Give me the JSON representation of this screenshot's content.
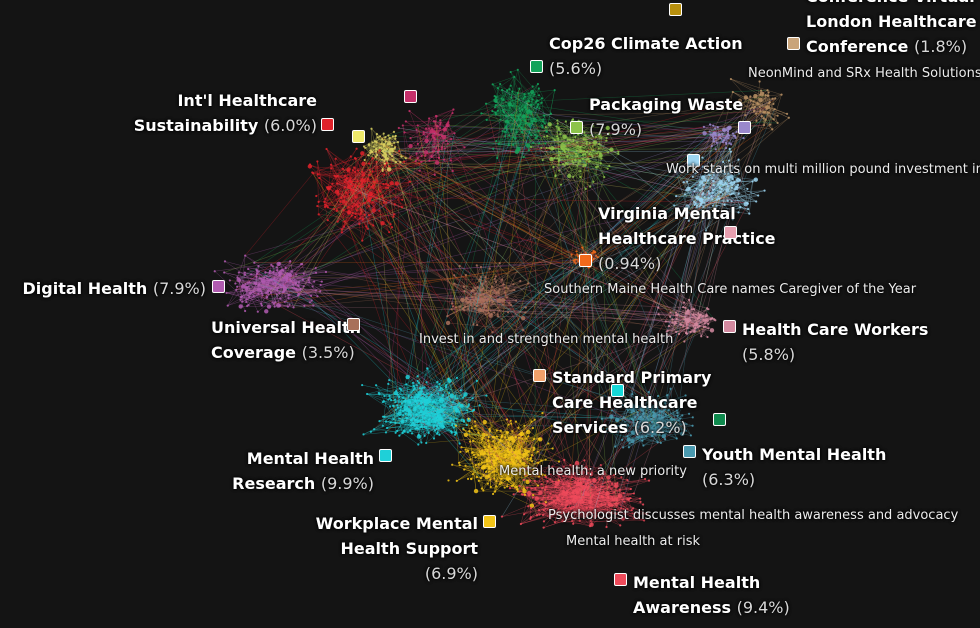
{
  "clusters": [
    {
      "id": "london",
      "name_lines": [
        "Conference Virtual",
        "London Healthcare",
        "Conference"
      ],
      "pct": "(1.8%)",
      "color": "#c9a47a"
    },
    {
      "id": "cop26",
      "name_lines": [
        "Cop26 Climate Action"
      ],
      "pct": "(5.6%)",
      "color": "#13a35a"
    },
    {
      "id": "packaging",
      "name_lines": [
        "Packaging Waste"
      ],
      "pct": "(7.9%)",
      "color": "#8cc34a"
    },
    {
      "id": "intl",
      "name_lines": [
        "Int'l Healthcare",
        "Sustainability"
      ],
      "pct": "(6.0%)",
      "color": "#e0222a"
    },
    {
      "id": "virginia",
      "name_lines": [
        "Virginia Mental",
        "Healthcare Practice"
      ],
      "pct": "(0.94%)",
      "color": "#f26a1b"
    },
    {
      "id": "digital",
      "name_lines": [
        "Digital Health"
      ],
      "pct": "(7.9%)",
      "color": "#b05bb0"
    },
    {
      "id": "universal",
      "name_lines": [
        "Universal Health",
        "Coverage"
      ],
      "pct": "(3.5%)",
      "color": "#a8705a"
    },
    {
      "id": "workers",
      "name_lines": [
        "Health Care Workers"
      ],
      "pct": "(5.8%)",
      "color": "#d48aa0"
    },
    {
      "id": "standard",
      "name_lines": [
        "Standard Primary",
        "Care Healthcare",
        "Services"
      ],
      "pct": "(6.2%)",
      "color": "#f2a06a"
    },
    {
      "id": "youth",
      "name_lines": [
        "Youth Mental Health"
      ],
      "pct": "(6.3%)",
      "color": "#4a9ab0"
    },
    {
      "id": "research",
      "name_lines": [
        "Mental Health",
        "Research"
      ],
      "pct": "(9.9%)",
      "color": "#1fd0d8"
    },
    {
      "id": "workplace",
      "name_lines": [
        "Workplace Mental",
        "Health Support"
      ],
      "pct": "(6.9%)",
      "color": "#f2c417"
    },
    {
      "id": "awareness",
      "name_lines": [
        "Mental Health",
        "Awareness"
      ],
      "pct": "(9.4%)",
      "color": "#ee4a5a"
    }
  ],
  "extra_swatches": [
    {
      "id": "gold-top",
      "color": "#b8900e"
    },
    {
      "id": "magenta",
      "color": "#c5306a"
    },
    {
      "id": "yellow",
      "color": "#eee86a"
    },
    {
      "id": "lavender",
      "color": "#9a88cc"
    },
    {
      "id": "lightblue",
      "color": "#9ed6f2"
    },
    {
      "id": "pink-small",
      "color": "#e8a0b0"
    },
    {
      "id": "cyan-mid",
      "color": "#15d8d8"
    },
    {
      "id": "green-dark",
      "color": "#0f8a4e"
    }
  ],
  "annotations": [
    {
      "id": "neonmind",
      "text": "NeonMind and SRx Health Solutions"
    },
    {
      "id": "investment",
      "text": "Work starts on multi million pound investment in"
    },
    {
      "id": "southern",
      "text": "Southern Maine Health Care names Caregiver of the Year"
    },
    {
      "id": "invest",
      "text": "Invest in and strengthen mental health"
    },
    {
      "id": "priority",
      "text": "Mental health: a new priority"
    },
    {
      "id": "psychologist",
      "text": "Psychologist discusses mental health awareness and advocacy"
    },
    {
      "id": "atrisk",
      "text": "Mental health at risk"
    }
  ],
  "network": {
    "background": "#141414",
    "blobs": [
      {
        "color": "#b89064",
        "n": 60,
        "spread": 1.0
      },
      {
        "color": "#13a35a",
        "n": 140,
        "spread": 1.0
      },
      {
        "color": "#8cc34a",
        "n": 140,
        "spread": 1.0
      },
      {
        "color": "#e0222a",
        "n": 190,
        "spread": 1.0
      },
      {
        "color": "#c5306a",
        "n": 80,
        "spread": 1.0
      },
      {
        "color": "#d8d060",
        "n": 80,
        "spread": 1.0
      },
      {
        "color": "#9a88cc",
        "n": 50,
        "spread": 1.0
      },
      {
        "color": "#9ed6f2",
        "n": 140,
        "spread": 1.0
      },
      {
        "color": "#b05bb0",
        "n": 190,
        "spread": 1.0
      },
      {
        "color": "#a8705a",
        "n": 130,
        "spread": 1.0
      },
      {
        "color": "#d48aa0",
        "n": 90,
        "spread": 1.0
      },
      {
        "color": "#1fd0d8",
        "n": 320,
        "spread": 1.0
      },
      {
        "color": "#f2c417",
        "n": 300,
        "spread": 1.0
      },
      {
        "color": "#ee4a5a",
        "n": 320,
        "spread": 1.0
      },
      {
        "color": "#4a9ab0",
        "n": 160,
        "spread": 1.0
      },
      {
        "color": "#f26a1b",
        "n": 40,
        "spread": 1.0
      }
    ]
  }
}
